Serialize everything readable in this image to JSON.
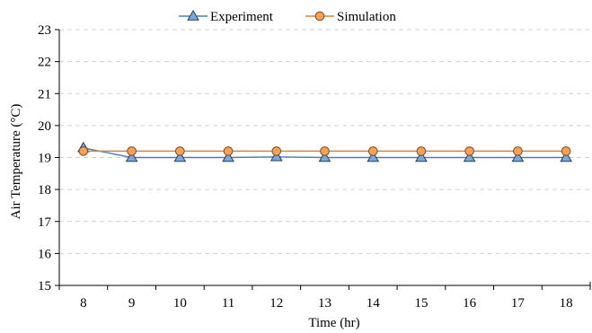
{
  "chart_data": {
    "type": "line",
    "xlabel": "Time  (hr)",
    "ylabel": "Air Temperature  (°C)",
    "x": [
      8,
      9,
      10,
      11,
      12,
      13,
      14,
      15,
      16,
      17,
      18
    ],
    "xlim": [
      7.5,
      18.5
    ],
    "ylim": [
      15,
      23
    ],
    "yticks": [
      15,
      16,
      17,
      18,
      19,
      20,
      21,
      22,
      23
    ],
    "grid": true,
    "legend_position": "top",
    "series": [
      {
        "name": "Experiment",
        "marker": "triangle",
        "color": "#4a7ebb",
        "marker_fill": "#7ea8d8",
        "values": [
          19.3,
          19.0,
          19.0,
          19.0,
          19.02,
          19.0,
          19.0,
          19.0,
          19.0,
          19.0,
          19.0
        ]
      },
      {
        "name": "Simulation",
        "marker": "circle",
        "color": "#d9843b",
        "marker_fill": "#f0a35e",
        "values": [
          19.2,
          19.2,
          19.2,
          19.2,
          19.2,
          19.2,
          19.2,
          19.2,
          19.2,
          19.2,
          19.2
        ]
      }
    ]
  }
}
